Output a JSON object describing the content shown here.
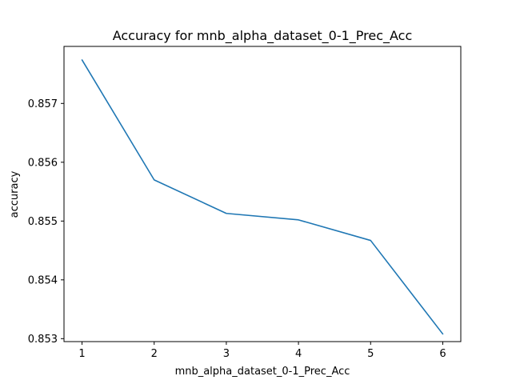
{
  "chart_data": {
    "type": "line",
    "title": "Accuracy for mnb_alpha_dataset_0-1_Prec_Acc",
    "xlabel": "mnb_alpha_dataset_0-1_Prec_Acc",
    "ylabel": "accuracy",
    "x": [
      1,
      2,
      3,
      4,
      5,
      6
    ],
    "series": [
      {
        "values": [
          0.85774,
          0.8557,
          0.85513,
          0.85502,
          0.85467,
          0.85308
        ],
        "color": "#1f77b4"
      }
    ],
    "xticks": [
      "1",
      "2",
      "3",
      "4",
      "5",
      "6"
    ],
    "yticks": [
      "0.853",
      "0.854",
      "0.855",
      "0.856",
      "0.857"
    ],
    "xlim": [
      0.75,
      6.25
    ],
    "ylim": [
      0.85295,
      0.85797
    ],
    "grid": false
  }
}
